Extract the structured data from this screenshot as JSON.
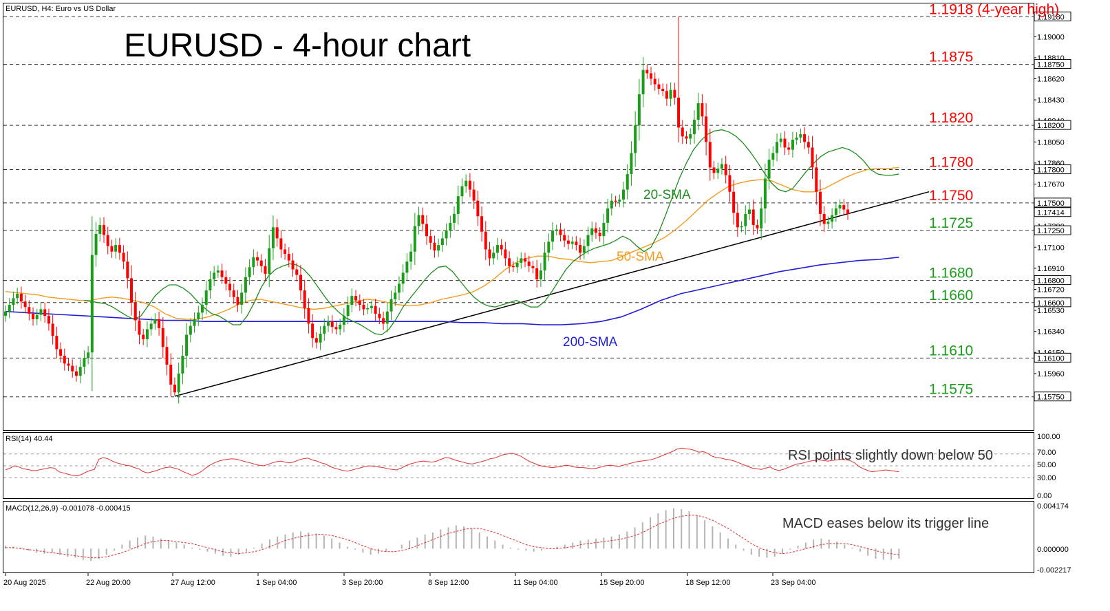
{
  "header": {
    "symbol_info": "EURUSD, H4:  Euro vs US Dollar",
    "chart_title": "EURUSD - 4-hour chart"
  },
  "chart_data": [
    {
      "type": "candlestick",
      "title": "EURUSD - 4-hour chart",
      "ylim": [
        1.1545,
        1.193
      ],
      "price_axis_ticks": [
        "1.19000",
        "1.18810",
        "1.18620",
        "1.18430",
        "1.18240",
        "1.18050",
        "1.17860",
        "1.17670",
        "1.17480",
        "1.17290",
        "1.17100",
        "1.16910",
        "1.16720",
        "1.16530",
        "1.16340",
        "1.16150",
        "1.15960"
      ],
      "price_axis_highlights": [
        {
          "label": "1.19180",
          "value": 1.1918
        },
        {
          "label": "1.18750",
          "value": 1.1875
        },
        {
          "label": "1.18200",
          "value": 1.182
        },
        {
          "label": "1.17800",
          "value": 1.178
        },
        {
          "label": "1.17500",
          "value": 1.175
        },
        {
          "label": "1.17414",
          "value": 1.17414
        },
        {
          "label": "1.17250",
          "value": 1.1725
        },
        {
          "label": "1.16800",
          "value": 1.168
        },
        {
          "label": "1.16600",
          "value": 1.166
        },
        {
          "label": "1.16100",
          "value": 1.161
        },
        {
          "label": "1.15750",
          "value": 1.1575
        }
      ],
      "levels": [
        {
          "value": 1.1918,
          "label": "1.1918 (4-year high)",
          "color": "#ff0000"
        },
        {
          "value": 1.1875,
          "label": "1.1875",
          "color": "#ff0000"
        },
        {
          "value": 1.182,
          "label": "1.1820",
          "color": "#ff0000"
        },
        {
          "value": 1.178,
          "label": "1.1780",
          "color": "#ff0000"
        },
        {
          "value": 1.175,
          "label": "1.1750",
          "color": "#ff0000"
        },
        {
          "value": 1.1725,
          "label": "1.1725",
          "color": "#1a9e1a"
        },
        {
          "value": 1.168,
          "label": "1.1680",
          "color": "#1a9e1a"
        },
        {
          "value": 1.166,
          "label": "1.1660",
          "color": "#1a9e1a"
        },
        {
          "value": 1.161,
          "label": "1.1610",
          "color": "#1a9e1a"
        },
        {
          "value": 1.1575,
          "label": "1.1575",
          "color": "#1a9e1a"
        }
      ],
      "x_ticks": [
        "20 Aug 2025",
        "22 Aug 20:00",
        "27 Aug 12:00",
        "1 Sep 04:00",
        "3 Sep 20:00",
        "8 Sep 12:00",
        "11 Sep 04:00",
        "15 Sep 20:00",
        "18 Sep 12:00",
        "23 Sep 04:00"
      ],
      "closes": [
        1.1652,
        1.1658,
        1.1664,
        1.1668,
        1.1661,
        1.1656,
        1.165,
        1.1645,
        1.1649,
        1.1654,
        1.1648,
        1.1641,
        1.163,
        1.1618,
        1.1612,
        1.1605,
        1.1603,
        1.1598,
        1.1594,
        1.1602,
        1.161,
        1.1615,
        1.1703,
        1.1722,
        1.173,
        1.1721,
        1.1711,
        1.1706,
        1.1712,
        1.1705,
        1.1697,
        1.1682,
        1.166,
        1.1644,
        1.1631,
        1.1627,
        1.1636,
        1.1641,
        1.1645,
        1.1637,
        1.162,
        1.1604,
        1.1586,
        1.1579,
        1.1596,
        1.1612,
        1.1631,
        1.1639,
        1.1645,
        1.1651,
        1.1658,
        1.1671,
        1.1681,
        1.1687,
        1.1689,
        1.1683,
        1.1677,
        1.1671,
        1.1665,
        1.1658,
        1.1669,
        1.1683,
        1.1692,
        1.1701,
        1.1698,
        1.1693,
        1.1686,
        1.1709,
        1.1728,
        1.1718,
        1.1708,
        1.1704,
        1.1698,
        1.169,
        1.1685,
        1.1671,
        1.1655,
        1.1641,
        1.1628,
        1.1624,
        1.1632,
        1.1639,
        1.1643,
        1.1638,
        1.1636,
        1.164,
        1.1648,
        1.1658,
        1.1666,
        1.1662,
        1.1658,
        1.1654,
        1.1655,
        1.1657,
        1.165,
        1.1646,
        1.1641,
        1.1652,
        1.1663,
        1.1669,
        1.1677,
        1.1687,
        1.1697,
        1.1706,
        1.1729,
        1.1739,
        1.1731,
        1.172,
        1.1714,
        1.1707,
        1.1712,
        1.1718,
        1.1725,
        1.1732,
        1.174,
        1.1756,
        1.1765,
        1.177,
        1.1762,
        1.1752,
        1.1738,
        1.1724,
        1.1708,
        1.17,
        1.1705,
        1.1712,
        1.1708,
        1.17,
        1.1693,
        1.1692,
        1.1696,
        1.17,
        1.1697,
        1.1693,
        1.1691,
        1.1681,
        1.1689,
        1.1705,
        1.1715,
        1.1725,
        1.1726,
        1.1721,
        1.1716,
        1.1713,
        1.1715,
        1.1712,
        1.1705,
        1.1711,
        1.1721,
        1.1727,
        1.1723,
        1.172,
        1.1732,
        1.1745,
        1.1752,
        1.1751,
        1.1753,
        1.1762,
        1.1776,
        1.1795,
        1.182,
        1.1848,
        1.187,
        1.1867,
        1.1862,
        1.1857,
        1.1853,
        1.1851,
        1.1844,
        1.1852,
        1.1845,
        1.1818,
        1.181,
        1.1808,
        1.1812,
        1.1825,
        1.184,
        1.1828,
        1.1805,
        1.1782,
        1.1777,
        1.1781,
        1.1785,
        1.1775,
        1.176,
        1.1741,
        1.1728,
        1.1729,
        1.174,
        1.1744,
        1.173,
        1.1727,
        1.1745,
        1.1772,
        1.1789,
        1.1795,
        1.1805,
        1.1808,
        1.18,
        1.1798,
        1.1807,
        1.1809,
        1.1812,
        1.1805,
        1.18,
        1.1782,
        1.176,
        1.174,
        1.1731,
        1.1733,
        1.1739,
        1.1745,
        1.1748,
        1.1744,
        1.174
      ],
      "sma20": [
        1.1662,
        1.1661,
        1.166,
        1.1659,
        1.1656,
        1.1652,
        1.1648,
        1.1645,
        1.1648,
        1.1657,
        1.1666,
        1.1672,
        1.1676,
        1.1676,
        1.1673,
        1.1668,
        1.1661,
        1.1655,
        1.165,
        1.1648,
        1.1644,
        1.164,
        1.164,
        1.1648,
        1.166,
        1.1674,
        1.1684,
        1.169,
        1.1693,
        1.1695,
        1.1694,
        1.169,
        1.1683,
        1.1674,
        1.1665,
        1.1657,
        1.1651,
        1.1646,
        1.1643,
        1.164,
        1.1636,
        1.1632,
        1.1631,
        1.1636,
        1.1645,
        1.1656,
        1.1664,
        1.1672,
        1.168,
        1.1687,
        1.1692,
        1.1693,
        1.1688,
        1.168,
        1.1672,
        1.1665,
        1.166,
        1.1657,
        1.1656,
        1.1658,
        1.166,
        1.1662,
        1.1659,
        1.1656,
        1.1656,
        1.1661,
        1.167,
        1.168,
        1.169,
        1.1697,
        1.1702,
        1.1706,
        1.1709,
        1.1711,
        1.1713,
        1.1716,
        1.172,
        1.1717,
        1.1711,
        1.1706,
        1.171,
        1.1722,
        1.1738,
        1.1755,
        1.1772,
        1.1786,
        1.1798,
        1.1806,
        1.1812,
        1.1815,
        1.1816,
        1.1814,
        1.181,
        1.1804,
        1.1796,
        1.1787,
        1.1777,
        1.1768,
        1.1762,
        1.176,
        1.1763,
        1.1771,
        1.1779,
        1.1786,
        1.1792,
        1.1796,
        1.1798,
        1.18,
        1.1798,
        1.1794,
        1.1788,
        1.178,
        1.1776,
        1.1775,
        1.1775,
        1.1776
      ],
      "sma50": [
        1.167,
        1.1669,
        1.1668,
        1.1667,
        1.1665,
        1.1664,
        1.1663,
        1.1662,
        1.1662,
        1.1664,
        1.1665,
        1.1664,
        1.1662,
        1.166,
        1.1656,
        1.165,
        1.1646,
        1.1645,
        1.1645,
        1.1647,
        1.165,
        1.1654,
        1.1659,
        1.1662,
        1.1663,
        1.1661,
        1.1659,
        1.1657,
        1.1655,
        1.1654,
        1.1655,
        1.1657,
        1.1659,
        1.1661,
        1.1663,
        1.1662,
        1.166,
        1.1658,
        1.1657,
        1.1658,
        1.166,
        1.1663,
        1.1665,
        1.1667,
        1.167,
        1.1675,
        1.1682,
        1.169,
        1.1696,
        1.17,
        1.1702,
        1.1702,
        1.17,
        1.1699,
        1.1697,
        1.1696,
        1.1697,
        1.1698,
        1.1702,
        1.1706,
        1.171,
        1.1714,
        1.1719,
        1.1726,
        1.1734,
        1.1743,
        1.1752,
        1.1759,
        1.1765,
        1.1768,
        1.177,
        1.1771,
        1.177,
        1.1766,
        1.1762,
        1.176,
        1.176,
        1.1763,
        1.1768,
        1.1773,
        1.1777,
        1.178,
        1.1781,
        1.1781,
        1.1782
      ],
      "sma200": [
        1.1652,
        1.1651,
        1.165,
        1.1649,
        1.1648,
        1.1647,
        1.1646,
        1.1645,
        1.1644,
        1.1644,
        1.1643,
        1.1643,
        1.1643,
        1.1643,
        1.1643,
        1.1643,
        1.1643,
        1.1643,
        1.1643,
        1.1643,
        1.1643,
        1.1643,
        1.1643,
        1.1642,
        1.1642,
        1.1641,
        1.1641,
        1.164,
        1.164,
        1.1641,
        1.1643,
        1.1647,
        1.1654,
        1.1662,
        1.1668,
        1.1672,
        1.1676,
        1.168,
        1.1684,
        1.1688,
        1.1691,
        1.1694,
        1.1696,
        1.1698,
        1.1699,
        1.1701
      ],
      "trendline": {
        "from": {
          "index": 43,
          "value": 1.15755
        },
        "to": {
          "index": 227,
          "value": 1.17527
        }
      },
      "annotations": [
        "20-SMA",
        "50-SMA",
        "200-SMA"
      ]
    },
    {
      "type": "line",
      "title": "RSI(14) 40.44",
      "ylim": [
        0,
        100
      ],
      "ticks": [
        "100.00",
        "70.00",
        "50.00",
        "30.00",
        "0.00"
      ],
      "levels": [
        70,
        30
      ],
      "annotation": "RSI points slightly down below 50",
      "values": [
        43,
        46,
        50,
        48,
        45,
        44,
        42,
        42,
        44,
        45,
        47,
        46,
        40,
        38,
        36,
        34,
        33,
        35,
        39,
        42,
        44,
        61,
        64,
        62,
        58,
        55,
        53,
        51,
        50,
        47,
        45,
        40,
        38,
        40,
        42,
        45,
        47,
        48,
        46,
        44,
        40,
        37,
        34,
        36,
        40,
        46,
        51,
        55,
        58,
        60,
        61,
        62,
        61,
        59,
        57,
        55,
        53,
        51,
        50,
        52,
        55,
        57,
        58,
        56,
        55,
        57,
        60,
        62,
        63,
        60,
        58,
        55,
        53,
        49,
        46,
        44,
        42,
        41,
        43,
        45,
        47,
        49,
        50,
        49,
        48,
        47,
        45,
        44,
        43,
        46,
        50,
        53,
        55,
        57,
        58,
        57,
        56,
        58,
        61,
        64,
        63,
        60,
        58,
        56,
        54,
        53,
        55,
        57,
        59,
        62,
        63,
        66,
        69,
        70,
        71,
        69,
        66,
        61,
        57,
        54,
        51,
        49,
        48,
        47,
        48,
        49,
        51,
        50,
        48,
        47,
        47,
        46,
        45,
        46,
        48,
        50,
        51,
        50,
        49,
        51,
        53,
        55,
        57,
        58,
        59,
        60,
        62,
        65,
        68,
        71,
        74,
        78,
        80,
        79,
        78,
        76,
        73,
        74,
        71,
        66,
        64,
        63,
        61,
        60,
        58,
        55,
        52,
        49,
        46,
        45,
        44,
        46,
        48,
        44,
        42,
        44,
        47,
        50,
        53,
        54,
        56,
        58,
        59,
        60,
        59,
        58,
        59,
        60,
        61,
        60,
        59,
        55,
        49,
        45,
        42,
        40,
        41,
        42,
        43,
        42,
        41,
        40
      ]
    },
    {
      "type": "bar",
      "title": "MACD(12,26,9) -0.001078 -0.000415",
      "ylim": [
        -0.002217,
        0.004174
      ],
      "ticks": [
        "0.004174",
        "0.000000",
        "-0.002217"
      ],
      "annotation": "MACD eases below its trigger line",
      "histogram": [
        0.0003,
        0.0002,
        0.0001,
        -0.0002,
        -0.0004,
        -0.0005,
        -0.0004,
        -0.0006,
        -0.0008,
        -0.0009,
        -0.0011,
        -0.0012,
        -0.001,
        -0.0006,
        -0.0002,
        0.0004,
        0.0008,
        0.0011,
        0.0013,
        0.0012,
        0.001,
        0.0008,
        0.0006,
        0.0004,
        0.0001,
        -0.0001,
        -0.0003,
        -0.0005,
        -0.0007,
        -0.0008,
        -0.0006,
        -0.0003,
        0.0001,
        0.0005,
        0.0009,
        0.0012,
        0.0014,
        0.0016,
        0.0017,
        0.0016,
        0.0015,
        0.0013,
        0.001,
        0.0006,
        0.0002,
        -0.0001,
        -0.0004,
        -0.0006,
        -0.0005,
        -0.0003,
        0.0,
        0.0004,
        0.0008,
        0.0011,
        0.0014,
        0.0016,
        0.0019,
        0.0021,
        0.0023,
        0.0022,
        0.002,
        0.0016,
        0.0012,
        0.0008,
        0.0004,
        0.0001,
        -0.0001,
        -0.0002,
        -0.0003,
        -0.0002,
        0.0,
        0.0002,
        0.0004,
        0.0006,
        0.0008,
        0.0009,
        0.001,
        0.0011,
        0.0012,
        0.0014,
        0.0017,
        0.0021,
        0.0026,
        0.0031,
        0.0035,
        0.0038,
        0.004,
        0.0039,
        0.0037,
        0.0033,
        0.0028,
        0.0022,
        0.0016,
        0.001,
        0.0004,
        -0.0002,
        -0.0006,
        -0.0008,
        -0.0009,
        -0.0008,
        -0.0005,
        -0.0001,
        0.0003,
        0.0006,
        0.0009,
        0.001,
        0.0009,
        0.0007,
        0.0004,
        0.0001,
        -0.0003,
        -0.0007,
        -0.001,
        -0.0011,
        -0.0011,
        -0.001
      ],
      "signal": [
        0.0001,
        0.0001,
        0.0,
        -0.0001,
        -0.0002,
        -0.0003,
        -0.0004,
        -0.0005,
        -0.0006,
        -0.0007,
        -0.0008,
        -0.0009,
        -0.0009,
        -0.0008,
        -0.0006,
        -0.0004,
        -0.0001,
        0.0002,
        0.0005,
        0.0007,
        0.0008,
        0.0008,
        0.0007,
        0.0006,
        0.0005,
        0.0003,
        0.0001,
        -0.0001,
        -0.0003,
        -0.0004,
        -0.0005,
        -0.0004,
        -0.0003,
        -0.0001,
        0.0002,
        0.0005,
        0.0008,
        0.001,
        0.0012,
        0.0013,
        0.0014,
        0.0014,
        0.0013,
        0.0011,
        0.0009,
        0.0006,
        0.0003,
        0.0,
        -0.0002,
        -0.0003,
        -0.0003,
        -0.0002,
        0.0,
        0.0003,
        0.0006,
        0.0009,
        0.0012,
        0.0015,
        0.0017,
        0.0019,
        0.002,
        0.002,
        0.0018,
        0.0016,
        0.0013,
        0.001,
        0.0007,
        0.0004,
        0.0002,
        0.0001,
        0.0,
        0.0,
        0.0001,
        0.0002,
        0.0004,
        0.0005,
        0.0006,
        0.0007,
        0.0008,
        0.0009,
        0.0011,
        0.0013,
        0.0016,
        0.002,
        0.0024,
        0.0027,
        0.003,
        0.0032,
        0.0033,
        0.0033,
        0.0031,
        0.0028,
        0.0024,
        0.002,
        0.0015,
        0.001,
        0.0005,
        0.0001,
        -0.0002,
        -0.0004,
        -0.0005,
        -0.0004,
        -0.0002,
        0.0,
        0.0002,
        0.0004,
        0.0005,
        0.0005,
        0.0005,
        0.0004,
        0.0002,
        0.0,
        -0.0002,
        -0.0004,
        -0.0005,
        -0.0006
      ]
    }
  ],
  "colors": {
    "bull": "#1a9e1a",
    "bear": "#ff0000",
    "sma20": "#1e8c1e",
    "sma50": "#f39c1f",
    "sma200": "#1f1fd6",
    "trendline": "#000000",
    "rsi": "#e03030",
    "macd_hist": "#b4b4b4",
    "macd_signal": "#e03030"
  }
}
